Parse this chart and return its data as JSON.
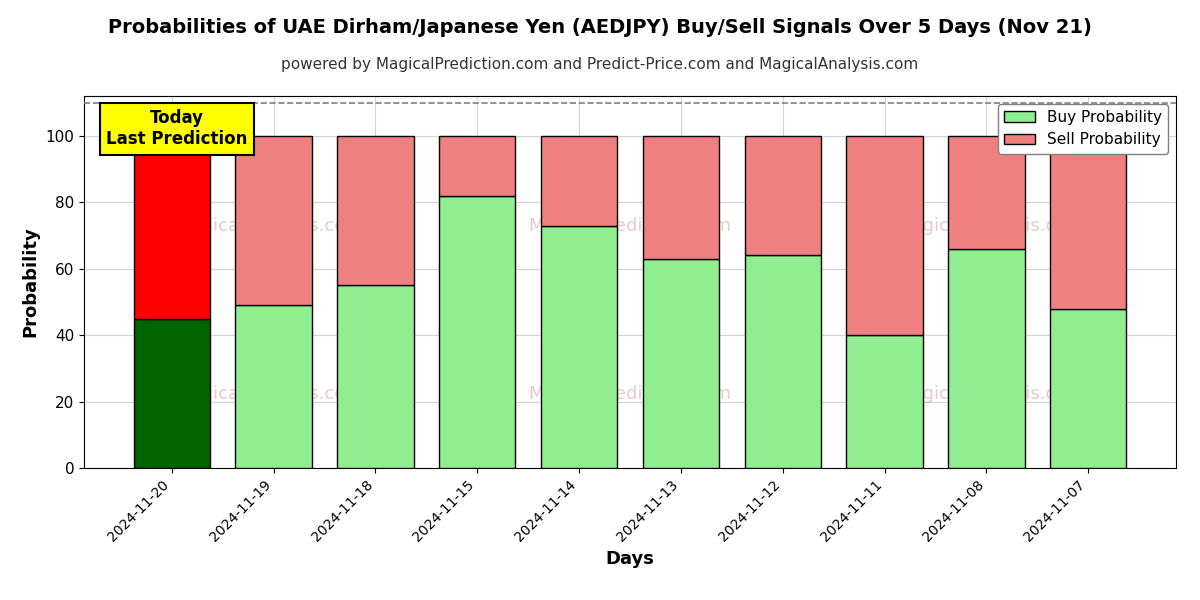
{
  "title": "Probabilities of UAE Dirham/Japanese Yen (AEDJPY) Buy/Sell Signals Over 5 Days (Nov 21)",
  "subtitle": "powered by MagicalPrediction.com and Predict-Price.com and MagicalAnalysis.com",
  "xlabel": "Days",
  "ylabel": "Probability",
  "dates": [
    "2024-11-20",
    "2024-11-19",
    "2024-11-18",
    "2024-11-15",
    "2024-11-14",
    "2024-11-13",
    "2024-11-12",
    "2024-11-11",
    "2024-11-08",
    "2024-11-07"
  ],
  "buy_values": [
    45,
    49,
    55,
    82,
    73,
    63,
    64,
    40,
    66,
    48
  ],
  "sell_values": [
    55,
    51,
    45,
    18,
    27,
    37,
    36,
    60,
    34,
    52
  ],
  "today_buy_color": "#006400",
  "today_sell_color": "#FF0000",
  "normal_buy_color": "#90EE90",
  "normal_sell_color": "#F08080",
  "bar_edge_color": "#000000",
  "ylim": [
    0,
    112
  ],
  "yticks": [
    0,
    20,
    40,
    60,
    80,
    100
  ],
  "dashed_line_y": 110,
  "annotation_text": "Today\nLast Prediction",
  "annotation_bg": "#FFFF00",
  "legend_buy_label": "Buy Probability",
  "legend_sell_label": "Sell Probability",
  "figsize": [
    12,
    6
  ],
  "dpi": 100
}
